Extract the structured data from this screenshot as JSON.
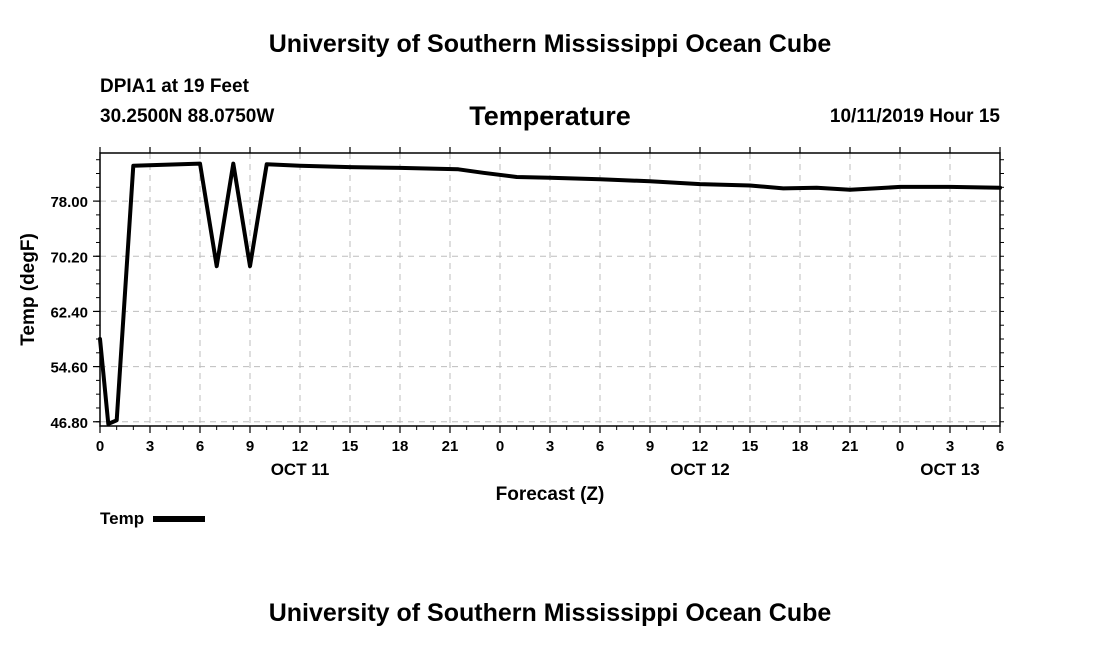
{
  "header": {
    "title": "University of Southern Mississippi Ocean Cube",
    "station": "DPIA1 at 19 Feet",
    "coords": "30.2500N 88.0750W",
    "chart_title": "Temperature",
    "datestamp": "10/11/2019 Hour 15"
  },
  "footer": {
    "title": "University of Southern Mississippi Ocean Cube"
  },
  "legend": {
    "label": "Temp",
    "color": "#000000"
  },
  "chart_data": {
    "type": "line",
    "title": "Temperature",
    "xlabel": "Forecast (Z)",
    "ylabel": "Temp (degF)",
    "xlim": [
      0,
      54
    ],
    "ylim": [
      46.2,
      84.8
    ],
    "yticks": [
      46.8,
      54.6,
      62.4,
      70.2,
      78.0
    ],
    "ytick_labels": [
      "46.80",
      "54.60",
      "62.40",
      "70.20",
      "78.00"
    ],
    "xticks": [
      0,
      3,
      6,
      9,
      12,
      15,
      18,
      21,
      24,
      27,
      30,
      33,
      36,
      39,
      42,
      45,
      48,
      51,
      54
    ],
    "xtick_labels": [
      "0",
      "3",
      "6",
      "9",
      "12",
      "15",
      "18",
      "21",
      "0",
      "3",
      "6",
      "9",
      "12",
      "15",
      "18",
      "21",
      "0",
      "3",
      "6"
    ],
    "date_labels": [
      {
        "x": 12,
        "label": "OCT 11"
      },
      {
        "x": 36,
        "label": "OCT 12"
      },
      {
        "x": 51,
        "label": "OCT 13"
      }
    ],
    "grid": true,
    "legend_position": "bottom-left",
    "series": [
      {
        "name": "Temp",
        "color": "#000000",
        "x": [
          0,
          0.5,
          1,
          2,
          6,
          7,
          8,
          9,
          10,
          12,
          15,
          18,
          21.5,
          23,
          25,
          27,
          30,
          33,
          36,
          39,
          41,
          43,
          45,
          46.5,
          48,
          51,
          54
        ],
        "y": [
          58.5,
          46.5,
          47.0,
          83.0,
          83.3,
          68.8,
          83.3,
          68.8,
          83.2,
          83.0,
          82.8,
          82.7,
          82.5,
          82.0,
          81.4,
          81.3,
          81.1,
          80.8,
          80.4,
          80.2,
          79.8,
          79.9,
          79.6,
          79.8,
          80.0,
          80.0,
          79.9
        ]
      }
    ]
  }
}
